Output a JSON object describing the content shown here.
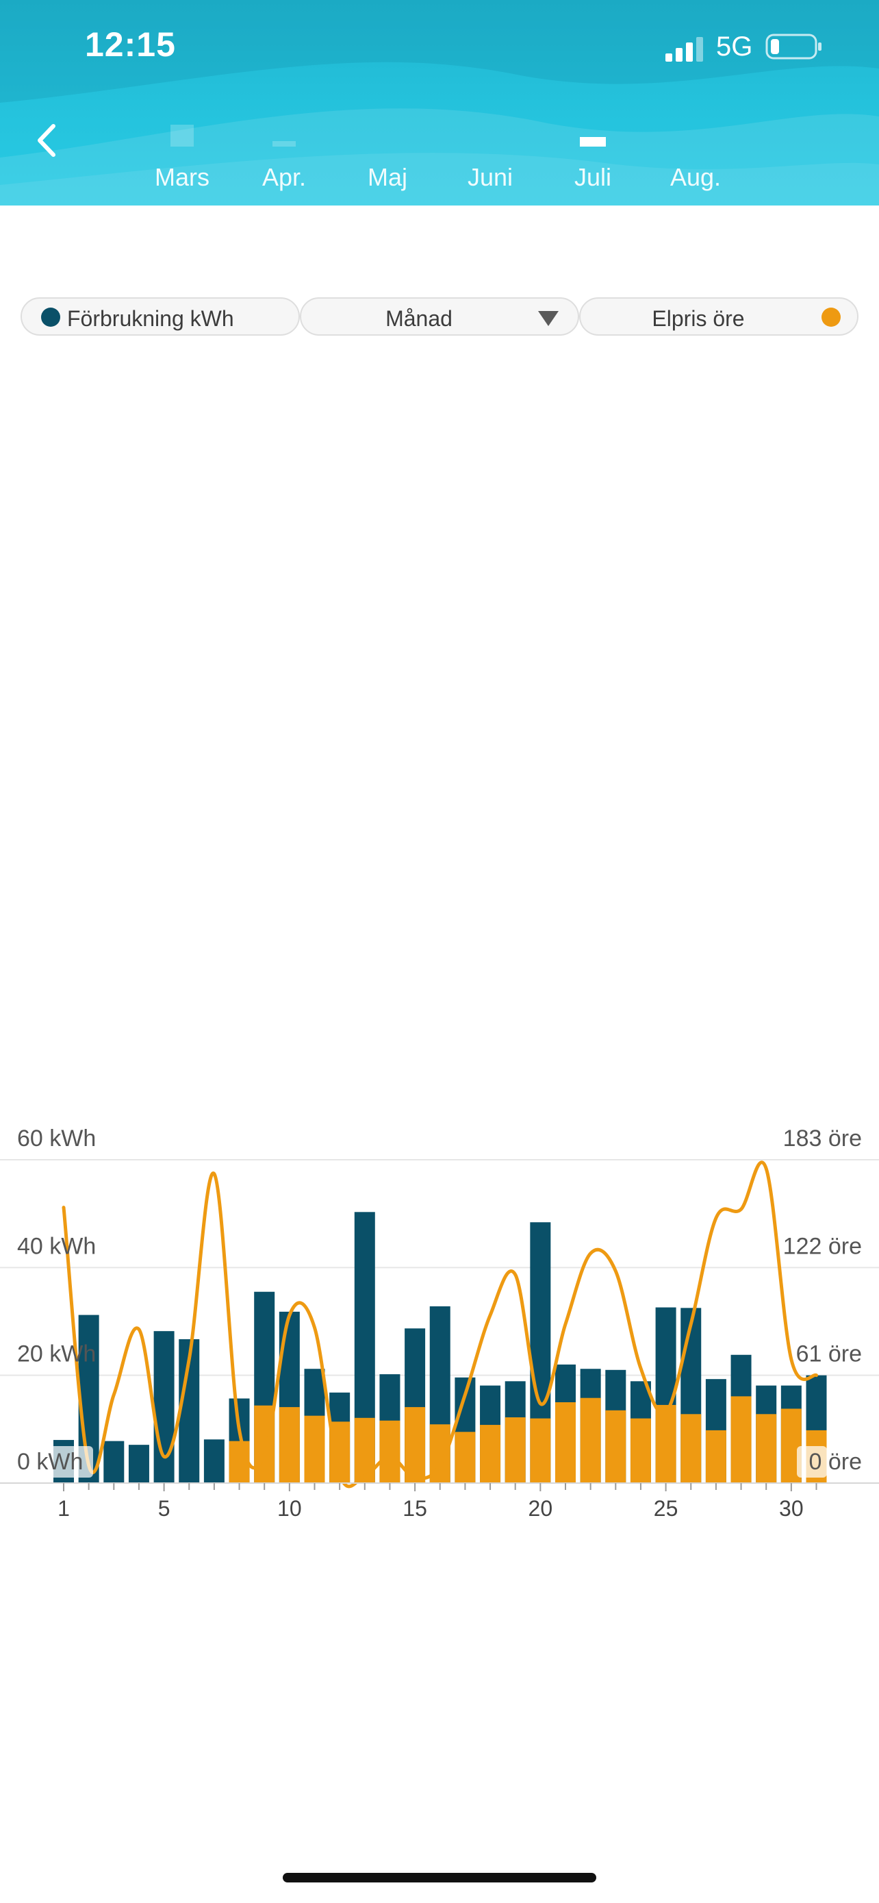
{
  "status_bar": {
    "time": "12:15",
    "network": "5G"
  },
  "header": {
    "months": [
      {
        "label": "Mars",
        "level": 0.45,
        "selected": false
      },
      {
        "label": "Apr.",
        "level": 0.12,
        "selected": false
      },
      {
        "label": "Maj",
        "level": 0.0,
        "selected": false
      },
      {
        "label": "Juni",
        "level": 0.0,
        "selected": false
      },
      {
        "label": "Juli",
        "level": 0.2,
        "selected": true
      },
      {
        "label": "Aug.",
        "level": 0.0,
        "selected": false
      }
    ]
  },
  "controls": {
    "consumption_label": "Förbrukning kWh",
    "period_label": "Månad",
    "price_label": "Elpris öre"
  },
  "colors": {
    "header": "#25c3dd",
    "consumption": "#0a5068",
    "price": "#ee9a12"
  },
  "chart_data": {
    "type": "bar",
    "x": [
      1,
      2,
      3,
      4,
      5,
      6,
      7,
      8,
      9,
      10,
      11,
      12,
      13,
      14,
      15,
      16,
      17,
      18,
      19,
      20,
      21,
      22,
      23,
      24,
      25,
      26,
      27,
      28,
      29,
      30,
      31
    ],
    "x_ticks": [
      1,
      5,
      10,
      15,
      20,
      25,
      30
    ],
    "ylim": [
      0,
      60
    ],
    "y_ticks": [
      0,
      20,
      40,
      60
    ],
    "y_tick_labels": [
      "0 kWh",
      "20 kWh",
      "40 kWh",
      "60 kWh"
    ],
    "y2lim": [
      0,
      183
    ],
    "y2_ticks": [
      0,
      61,
      122,
      183
    ],
    "y2_tick_labels": [
      "0 öre",
      "61 öre",
      "122 öre",
      "183 öre"
    ],
    "grid": true,
    "series": [
      {
        "kind": "bar",
        "values": [
          8.0,
          31.2,
          7.8,
          7.1,
          28.2,
          26.7,
          8.1,
          15.7,
          35.5,
          31.8,
          21.2,
          16.8,
          50.3,
          20.2,
          28.7,
          32.8,
          19.6,
          18.1,
          18.9,
          48.4,
          22.0,
          21.2,
          21.0,
          18.9,
          32.6,
          32.5,
          19.3,
          23.8,
          18.1,
          18.1,
          20.0
        ]
      },
      {
        "kind": "bar",
        "values": [
          0,
          0,
          0,
          0,
          0,
          0,
          0,
          7.8,
          14.4,
          14.1,
          12.5,
          11.4,
          12.1,
          11.6,
          14.1,
          10.9,
          9.5,
          10.8,
          12.2,
          12.0,
          15.0,
          15.8,
          13.5,
          12.0,
          14.5,
          12.8,
          9.8,
          16.1,
          12.8,
          13.8,
          9.8
        ]
      },
      {
        "kind": "line",
        "values": [
          156,
          10,
          50,
          87,
          15,
          70,
          175,
          30,
          16,
          95,
          88,
          5,
          4,
          15,
          3,
          10,
          50,
          95,
          118,
          45,
          90,
          130,
          120,
          65,
          40,
          90,
          150,
          155,
          178,
          70,
          61
        ]
      }
    ]
  }
}
